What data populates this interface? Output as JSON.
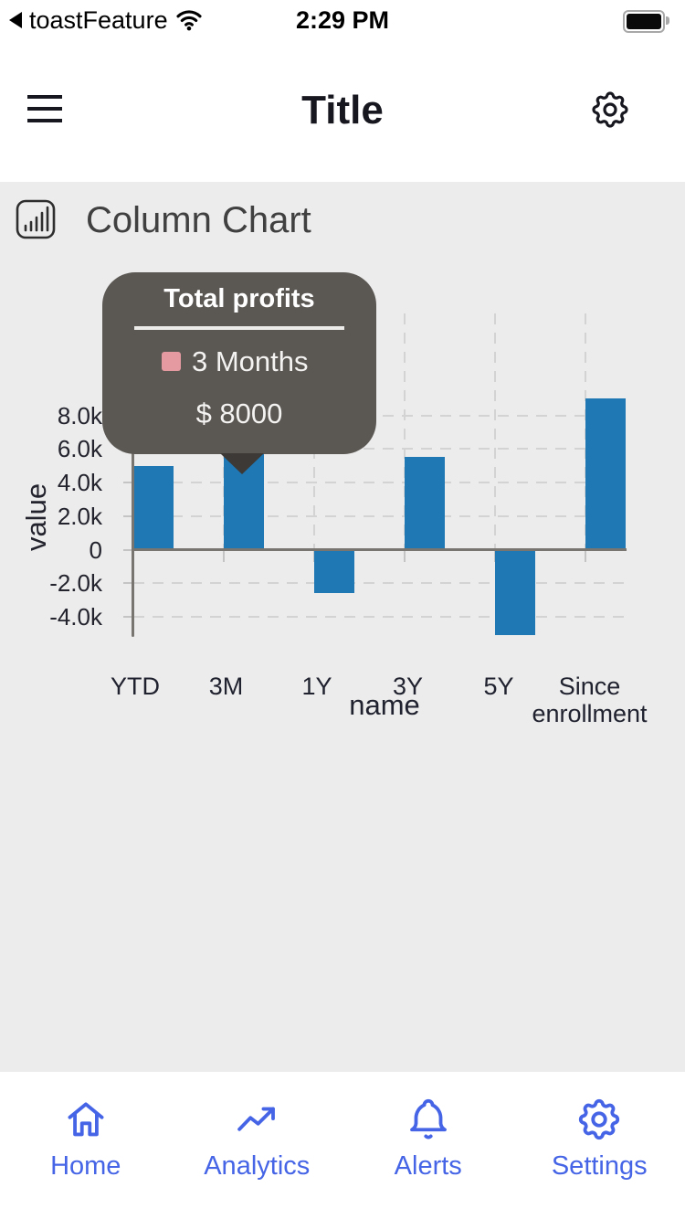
{
  "status_bar": {
    "app_switcher": "toastFeature",
    "time": "2:29 PM"
  },
  "header": {
    "title": "Title"
  },
  "section": {
    "title": "Column Chart"
  },
  "chart_data": {
    "type": "bar",
    "title": "Column Chart",
    "categories": [
      "YTD",
      "3M",
      "1Y",
      "3Y",
      "5Y",
      "Since enrollment"
    ],
    "values": [
      5000,
      8000,
      -2500,
      5500,
      -5000,
      9000
    ],
    "series_color": "#1f77b4",
    "xlabel": "name",
    "ylabel": "value",
    "y_ticks": [
      {
        "label": "8.0k",
        "value": 8000
      },
      {
        "label": "6.0k",
        "value": 6000
      },
      {
        "label": "4.0k",
        "value": 4000
      },
      {
        "label": "2.0k",
        "value": 2000
      },
      {
        "label": "0",
        "value": 0
      },
      {
        "label": "-2.0k",
        "value": -2000
      },
      {
        "label": "-4.0k",
        "value": -4000
      }
    ],
    "ylim": [
      -5500,
      9500
    ],
    "grid": true,
    "tooltip": {
      "title": "Total profits",
      "series_label": "3 Months",
      "value": "$ 8000",
      "target_category": "3M",
      "swatch_color": "#e59aa1",
      "background_color": "#5b5753"
    }
  },
  "bottom_nav": {
    "color": "#4565e6",
    "items": [
      {
        "label": "Home",
        "icon": "home-icon"
      },
      {
        "label": "Analytics",
        "icon": "trending-up-icon"
      },
      {
        "label": "Alerts",
        "icon": "bell-icon"
      },
      {
        "label": "Settings",
        "icon": "gear-icon"
      }
    ]
  }
}
